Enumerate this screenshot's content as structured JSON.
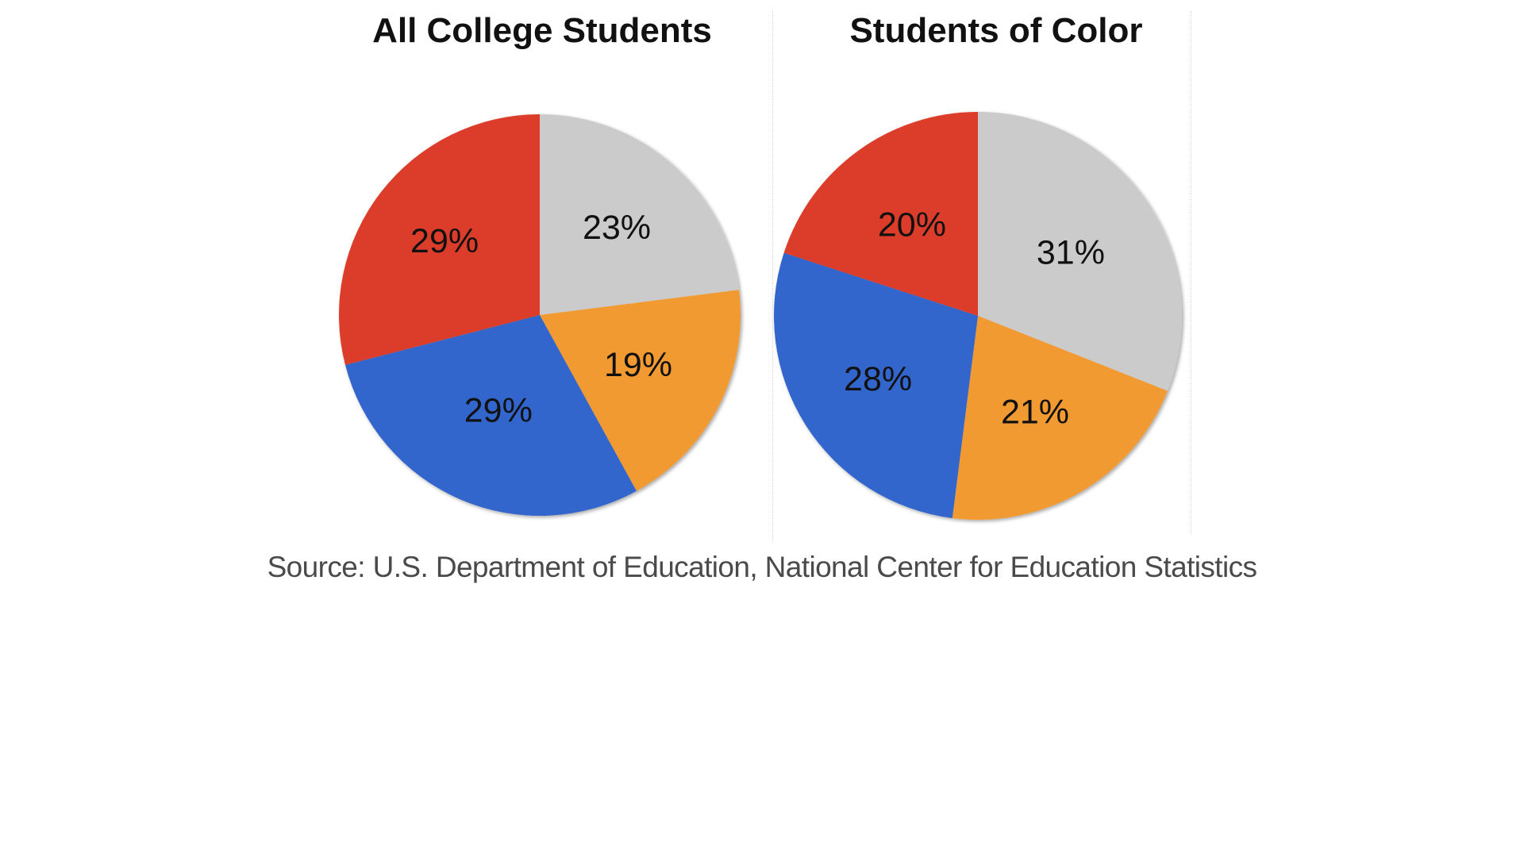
{
  "chart_data": [
    {
      "type": "pie",
      "title": "All College Students",
      "slices": [
        {
          "value": 23,
          "label": "23%",
          "color": "#cbcbcb"
        },
        {
          "value": 19,
          "label": "19%",
          "color": "#f29a33"
        },
        {
          "value": 29,
          "label": "29%",
          "color": "#3366cc"
        },
        {
          "value": 29,
          "label": "29%",
          "color": "#dc3e2c"
        }
      ]
    },
    {
      "type": "pie",
      "title": "Students of Color",
      "slices": [
        {
          "value": 31,
          "label": "31%",
          "color": "#cbcbcb"
        },
        {
          "value": 21,
          "label": "21%",
          "color": "#f29a33"
        },
        {
          "value": 28,
          "label": "28%",
          "color": "#3366cc"
        },
        {
          "value": 20,
          "label": "20%",
          "color": "#dc3e2c"
        }
      ]
    }
  ],
  "source": "Source: U.S. Department of Education, National Center for Education Statistics"
}
